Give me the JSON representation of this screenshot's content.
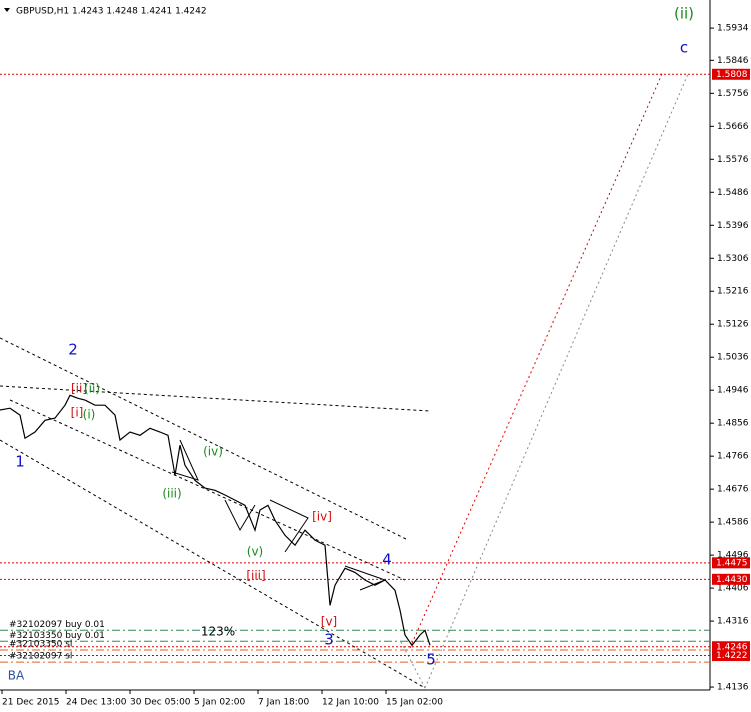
{
  "chart_data": {
    "type": "line",
    "title": "GBPUSD,H1 1.4243 1.4248 1.4241 1.4242",
    "color": "#000000",
    "x": [
      0,
      10,
      20,
      25,
      35,
      45,
      55,
      65,
      70,
      78,
      85,
      95,
      105,
      115,
      120,
      130,
      140,
      150,
      160,
      168,
      175,
      180,
      185,
      195,
      205,
      215,
      225,
      235,
      245,
      255,
      260,
      268,
      275,
      285,
      295,
      305,
      315,
      325,
      330,
      335,
      345,
      355,
      365,
      375,
      385,
      395,
      400,
      405,
      412,
      420,
      425,
      430
    ],
    "values": [
      1.4892,
      1.4897,
      1.4878,
      1.4815,
      1.4832,
      1.4864,
      1.487,
      1.4905,
      1.4932,
      1.4924,
      1.4919,
      1.4905,
      1.4905,
      1.4878,
      1.481,
      1.4832,
      1.4823,
      1.4842,
      1.4832,
      1.4823,
      1.4714,
      1.4796,
      1.4741,
      1.47,
      1.4679,
      1.4673,
      1.466,
      1.4646,
      1.4632,
      1.4564,
      1.4619,
      1.4632,
      1.4591,
      1.455,
      1.4523,
      1.4564,
      1.4537,
      1.4523,
      1.4359,
      1.4414,
      1.446,
      1.4449,
      1.4428,
      1.4414,
      1.4428,
      1.44,
      1.4346,
      1.4278,
      1.425,
      1.4278,
      1.4291,
      1.425
    ],
    "xlim": [
      0,
      710
    ],
    "ylim": [
      1.4128,
      1.5997
    ],
    "xticks": [
      {
        "value": 2,
        "label": "21 Dec 2015"
      },
      {
        "value": 66,
        "label": "24 Dec 13:00"
      },
      {
        "value": 130,
        "label": "30 Dec 05:00"
      },
      {
        "value": 194,
        "label": "5 Jan 02:00"
      },
      {
        "value": 258,
        "label": "7 Jan 18:00"
      },
      {
        "value": 322,
        "label": "12 Jan 10:00"
      },
      {
        "value": 386,
        "label": "15 Jan 02:00"
      }
    ],
    "yticks": [
      1.5934,
      1.5846,
      1.5756,
      1.5666,
      1.5576,
      1.5486,
      1.5396,
      1.5306,
      1.5216,
      1.5126,
      1.5036,
      1.4946,
      1.4856,
      1.4766,
      1.4676,
      1.4586,
      1.4496,
      1.4406,
      1.4316,
      1.4136
    ],
    "price_levels": [
      {
        "value": 1.5808,
        "label": "1.5808",
        "color": "#e00000"
      },
      {
        "value": 1.4475,
        "label": "1.4475",
        "color": "#e00000"
      },
      {
        "value": 1.443,
        "label": "1.4430",
        "color": "#e00000"
      },
      {
        "value": 1.4246,
        "label": "1.4246",
        "color": "#e00000"
      },
      {
        "value": 1.4222,
        "label": "1.4222",
        "color": "#e00000"
      }
    ],
    "orders": [
      {
        "label": "#32102097 buy 0.01",
        "price": 1.4291,
        "color": "#2e8b57"
      },
      {
        "label": "#32103350 buy 0.01",
        "price": 1.4261,
        "color": "#2e8b57"
      },
      {
        "label": "#32103350 sl",
        "price": 1.4237,
        "color": "#e06020"
      },
      {
        "label": "#32102097 sl",
        "price": 1.4204,
        "color": "#e06020"
      }
    ],
    "annotations": [
      {
        "text": "(ii)",
        "color": "#1a8a1a"
      },
      {
        "text": "c",
        "color": "#1010d0"
      },
      {
        "text": "2",
        "color": "#1010d0"
      },
      {
        "text": "1",
        "color": "#1010d0"
      },
      {
        "text": "[ii]",
        "color": "#d01010"
      },
      {
        "text": "(ii)",
        "color": "#1a8a1a"
      },
      {
        "text": "[i]",
        "color": "#d01010"
      },
      {
        "text": "(i)",
        "color": "#1a8a1a"
      },
      {
        "text": "(iv)",
        "color": "#1a8a1a"
      },
      {
        "text": "(iii)",
        "color": "#1a8a1a"
      },
      {
        "text": "(v)",
        "color": "#1a8a1a"
      },
      {
        "text": "[iv]",
        "color": "#d01010"
      },
      {
        "text": "[iii]",
        "color": "#d01010"
      },
      {
        "text": "4",
        "color": "#1010d0"
      },
      {
        "text": "[v]",
        "color": "#d01010"
      },
      {
        "text": "3",
        "color": "#1010d0"
      },
      {
        "text": "5",
        "color": "#1010d0"
      },
      {
        "text": "123%",
        "color": "#000000"
      },
      {
        "text": "BA",
        "color": "#3050a0"
      }
    ]
  }
}
